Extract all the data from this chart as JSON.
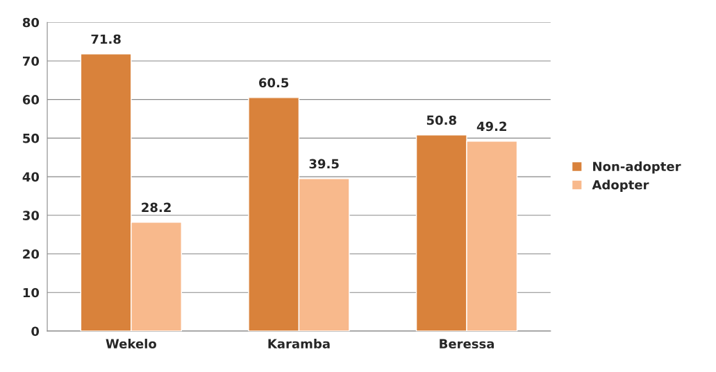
{
  "chart_data": {
    "type": "bar",
    "categories": [
      "Wekelo",
      "Karamba",
      "Beressa"
    ],
    "series": [
      {
        "name": "Non-adopter",
        "color": "#d9823b",
        "values": [
          71.8,
          60.5,
          50.8
        ]
      },
      {
        "name": "Adopter",
        "color": "#f8b98c",
        "values": [
          28.2,
          39.5,
          49.2
        ]
      }
    ],
    "ylim": [
      0,
      80
    ],
    "yticks": [
      0,
      10,
      20,
      30,
      40,
      50,
      60,
      70,
      80
    ],
    "grid": "y",
    "legend": "right",
    "data_labels": true
  }
}
